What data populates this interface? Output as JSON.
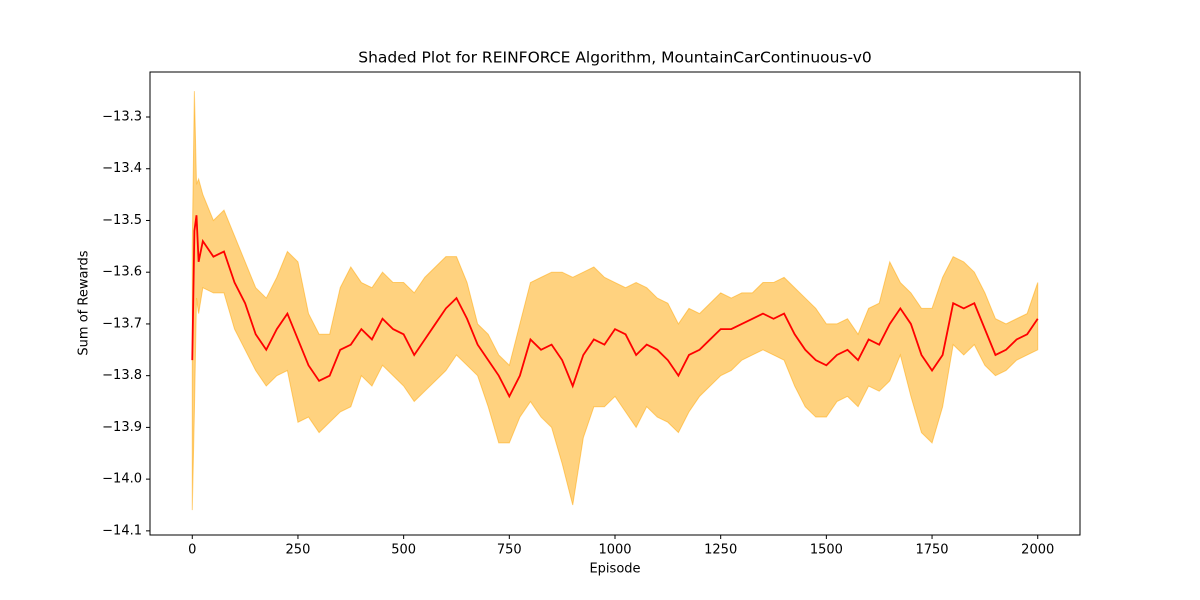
{
  "chart_data": {
    "type": "line",
    "title": "Shaded Plot for REINFORCE Algorithm, MountainCarContinuous-v0",
    "xlabel": "Episode",
    "ylabel": "Sum of Rewards",
    "x": [
      0,
      5,
      10,
      15,
      25,
      50,
      75,
      100,
      125,
      150,
      175,
      200,
      225,
      250,
      275,
      300,
      325,
      350,
      375,
      400,
      425,
      450,
      475,
      500,
      525,
      550,
      575,
      600,
      625,
      650,
      675,
      700,
      725,
      750,
      775,
      800,
      825,
      850,
      875,
      900,
      925,
      950,
      975,
      1000,
      1025,
      1050,
      1075,
      1100,
      1125,
      1150,
      1175,
      1200,
      1225,
      1250,
      1275,
      1300,
      1325,
      1350,
      1375,
      1400,
      1425,
      1450,
      1475,
      1500,
      1525,
      1550,
      1575,
      1600,
      1625,
      1650,
      1675,
      1700,
      1725,
      1750,
      1775,
      1800,
      1825,
      1850,
      1875,
      1900,
      1925,
      1950,
      1975,
      2000
    ],
    "series": [
      {
        "color": "#ff0000",
        "values": [
          -13.77,
          -13.52,
          -13.49,
          -13.58,
          -13.54,
          -13.57,
          -13.56,
          -13.62,
          -13.66,
          -13.72,
          -13.75,
          -13.71,
          -13.68,
          -13.73,
          -13.78,
          -13.81,
          -13.8,
          -13.75,
          -13.74,
          -13.71,
          -13.73,
          -13.69,
          -13.71,
          -13.72,
          -13.76,
          -13.73,
          -13.7,
          -13.67,
          -13.65,
          -13.69,
          -13.74,
          -13.77,
          -13.8,
          -13.84,
          -13.8,
          -13.73,
          -13.75,
          -13.74,
          -13.77,
          -13.82,
          -13.76,
          -13.73,
          -13.74,
          -13.71,
          -13.72,
          -13.76,
          -13.74,
          -13.75,
          -13.77,
          -13.8,
          -13.76,
          -13.75,
          -13.73,
          -13.71,
          -13.71,
          -13.7,
          -13.69,
          -13.68,
          -13.69,
          -13.68,
          -13.72,
          -13.75,
          -13.77,
          -13.78,
          -13.76,
          -13.75,
          -13.77,
          -13.73,
          -13.74,
          -13.7,
          -13.67,
          -13.7,
          -13.76,
          -13.79,
          -13.76,
          -13.66,
          -13.67,
          -13.66,
          -13.71,
          -13.76,
          -13.75,
          -13.73,
          -13.72,
          -13.69
        ]
      }
    ],
    "band": {
      "color": "#ffa500",
      "opacity": 0.5,
      "upper": [
        -13.55,
        -13.25,
        -13.43,
        -13.42,
        -13.45,
        -13.5,
        -13.48,
        -13.53,
        -13.58,
        -13.63,
        -13.65,
        -13.61,
        -13.56,
        -13.58,
        -13.68,
        -13.72,
        -13.72,
        -13.63,
        -13.59,
        -13.62,
        -13.63,
        -13.6,
        -13.62,
        -13.62,
        -13.64,
        -13.61,
        -13.59,
        -13.57,
        -13.57,
        -13.62,
        -13.7,
        -13.72,
        -13.76,
        -13.78,
        -13.7,
        -13.62,
        -13.61,
        -13.6,
        -13.6,
        -13.61,
        -13.6,
        -13.59,
        -13.61,
        -13.62,
        -13.63,
        -13.62,
        -13.63,
        -13.65,
        -13.66,
        -13.7,
        -13.67,
        -13.68,
        -13.66,
        -13.64,
        -13.65,
        -13.64,
        -13.64,
        -13.62,
        -13.62,
        -13.61,
        -13.63,
        -13.65,
        -13.67,
        -13.7,
        -13.7,
        -13.69,
        -13.72,
        -13.67,
        -13.66,
        -13.58,
        -13.62,
        -13.64,
        -13.67,
        -13.67,
        -13.61,
        -13.57,
        -13.58,
        -13.6,
        -13.64,
        -13.69,
        -13.7,
        -13.69,
        -13.68,
        -13.62
      ],
      "lower": [
        -14.06,
        -13.87,
        -13.65,
        -13.68,
        -13.63,
        -13.64,
        -13.64,
        -13.71,
        -13.75,
        -13.79,
        -13.82,
        -13.8,
        -13.79,
        -13.89,
        -13.88,
        -13.91,
        -13.89,
        -13.87,
        -13.86,
        -13.8,
        -13.82,
        -13.78,
        -13.8,
        -13.82,
        -13.85,
        -13.83,
        -13.81,
        -13.79,
        -13.76,
        -13.78,
        -13.8,
        -13.86,
        -13.93,
        -13.93,
        -13.88,
        -13.85,
        -13.88,
        -13.9,
        -13.97,
        -14.05,
        -13.92,
        -13.86,
        -13.86,
        -13.84,
        -13.87,
        -13.9,
        -13.86,
        -13.88,
        -13.89,
        -13.91,
        -13.87,
        -13.84,
        -13.82,
        -13.8,
        -13.79,
        -13.77,
        -13.76,
        -13.75,
        -13.76,
        -13.77,
        -13.82,
        -13.86,
        -13.88,
        -13.88,
        -13.85,
        -13.84,
        -13.86,
        -13.82,
        -13.83,
        -13.81,
        -13.76,
        -13.84,
        -13.91,
        -13.93,
        -13.86,
        -13.74,
        -13.76,
        -13.74,
        -13.78,
        -13.8,
        -13.79,
        -13.77,
        -13.76,
        -13.75
      ]
    },
    "xlim": [
      -100,
      2100
    ],
    "ylim": [
      -14.108,
      -13.213
    ],
    "xticks": [
      0,
      250,
      500,
      750,
      1000,
      1250,
      1500,
      1750,
      2000
    ],
    "yticks": [
      {
        "value": -14.1,
        "label": "−14.1"
      },
      {
        "value": -14.0,
        "label": "−14.0"
      },
      {
        "value": -13.9,
        "label": "−13.9"
      },
      {
        "value": -13.8,
        "label": "−13.8"
      },
      {
        "value": -13.7,
        "label": "−13.7"
      },
      {
        "value": -13.6,
        "label": "−13.6"
      },
      {
        "value": -13.5,
        "label": "−13.5"
      },
      {
        "value": -13.4,
        "label": "−13.4"
      },
      {
        "value": -13.3,
        "label": "−13.3"
      }
    ]
  }
}
